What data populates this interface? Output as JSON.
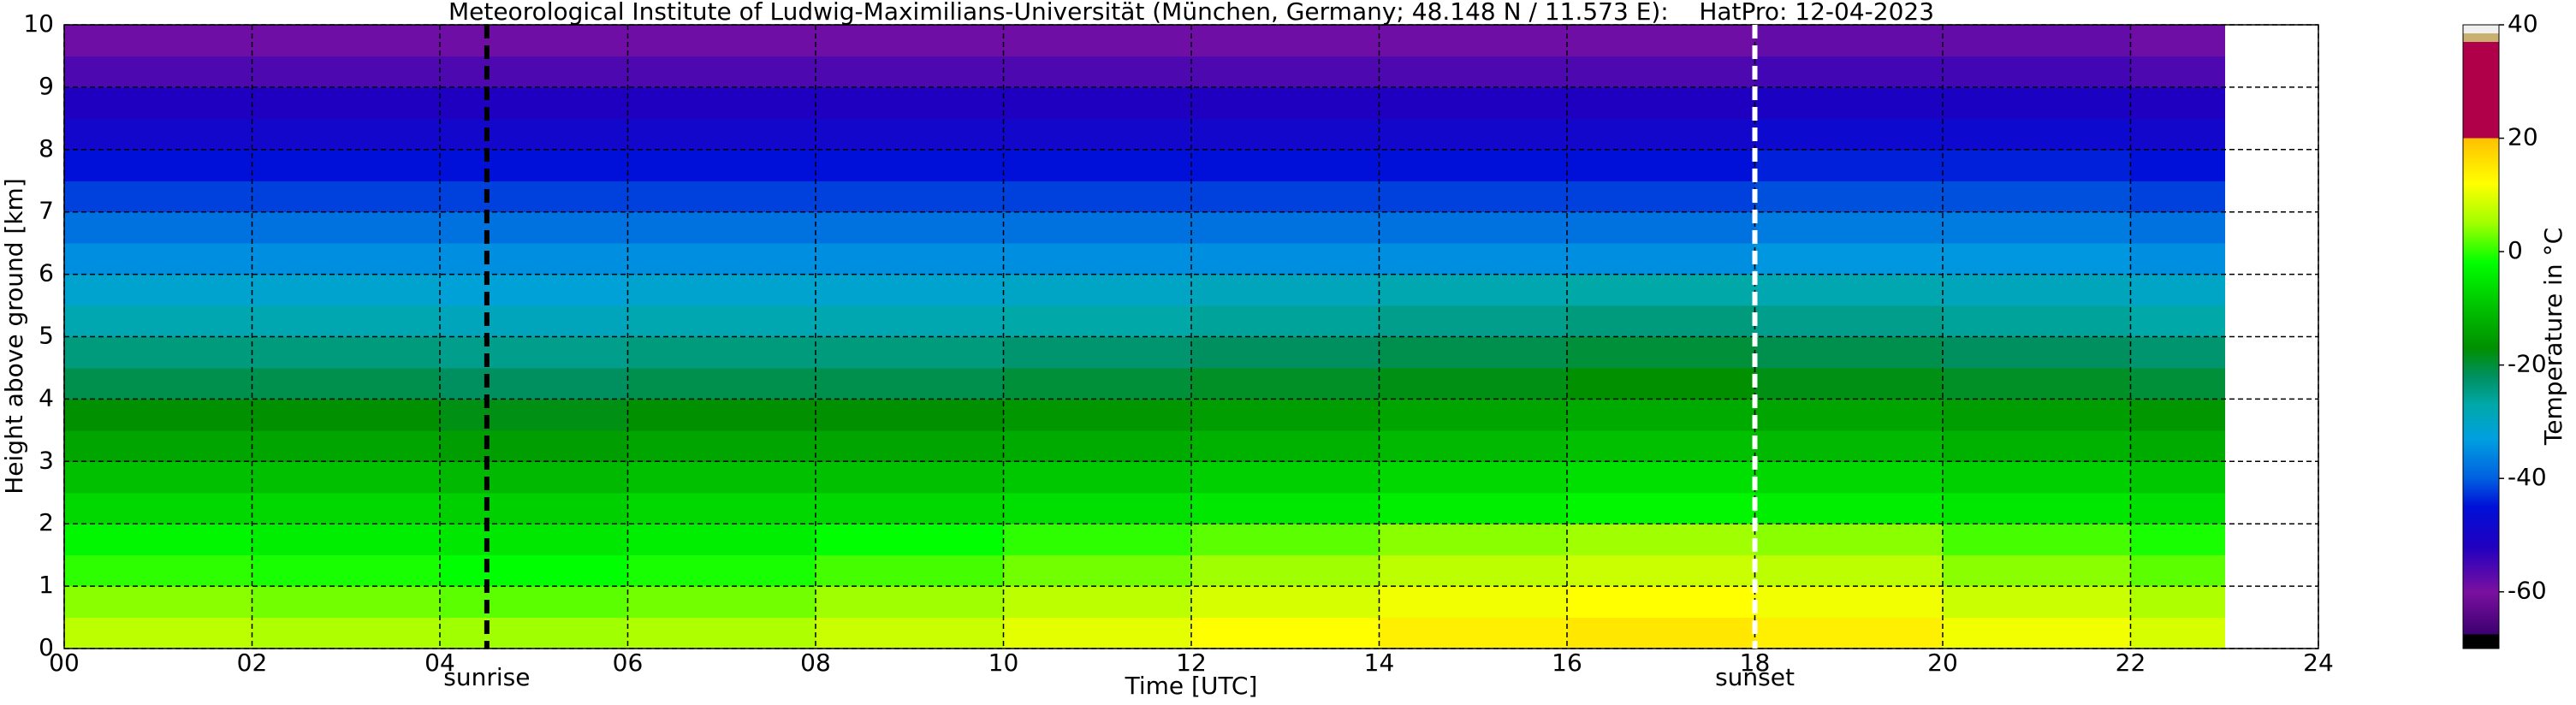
{
  "chart_data": {
    "type": "heatmap",
    "title": "Meteorological Institute of Ludwig-Maximilians-Universität (München, Germany; 48.148 N / 11.573 E):    HatPro: 12-04-2023",
    "xlabel": "Time [UTC]",
    "ylabel": "Height above ground [km]",
    "xlim": [
      0,
      24
    ],
    "ylim": [
      0,
      10
    ],
    "xticks": [
      {
        "value": 0,
        "label": "00"
      },
      {
        "value": 2,
        "label": "02"
      },
      {
        "value": 4,
        "label": "04"
      },
      {
        "value": 6,
        "label": "06"
      },
      {
        "value": 8,
        "label": "08"
      },
      10,
      12,
      14,
      16,
      18,
      20,
      22,
      24
    ],
    "yticks": [
      0,
      1,
      2,
      3,
      4,
      5,
      6,
      7,
      8,
      9,
      10
    ],
    "grid": true,
    "x_edges": [
      0,
      2,
      4,
      6,
      8,
      10,
      12,
      14,
      16,
      18,
      20,
      22,
      23
    ],
    "y_edges": [
      0,
      0.5,
      1,
      1.5,
      2,
      2.5,
      3,
      3.5,
      4,
      4.5,
      5,
      5.5,
      6,
      6.5,
      7,
      7.5,
      8,
      8.5,
      9,
      9.5,
      10
    ],
    "values": [
      [
        7,
        6,
        5,
        6,
        8,
        10,
        12,
        14,
        15,
        14,
        11,
        9
      ],
      [
        4,
        3,
        2,
        3,
        5,
        7,
        9,
        11,
        12,
        11,
        8,
        6
      ],
      [
        0,
        -1,
        -2,
        -1,
        1,
        3,
        5,
        7,
        8,
        7,
        4,
        2
      ],
      [
        -3,
        -4,
        -5,
        -4,
        -2,
        0,
        2,
        4,
        5,
        4,
        1,
        -1
      ],
      [
        -7,
        -7,
        -8,
        -7,
        -7,
        -6,
        -5,
        -4,
        -3,
        -4,
        -5,
        -6
      ],
      [
        -10,
        -10,
        -11,
        -10,
        -10,
        -9,
        -8,
        -7,
        -6,
        -7,
        -8,
        -9
      ],
      [
        -14,
        -14,
        -15,
        -14,
        -14,
        -13,
        -12,
        -11,
        -10,
        -11,
        -12,
        -13
      ],
      [
        -17,
        -17,
        -18,
        -17,
        -17,
        -16,
        -15,
        -14,
        -13,
        -14,
        -15,
        -16
      ],
      [
        -21,
        -21,
        -22,
        -21,
        -21,
        -20,
        -19,
        -18,
        -17,
        -18,
        -19,
        -20
      ],
      [
        -24,
        -24,
        -25,
        -24,
        -24,
        -23,
        -22,
        -21,
        -20,
        -21,
        -22,
        -23
      ],
      [
        -28,
        -28,
        -29,
        -28,
        -28,
        -27,
        -26,
        -25,
        -24,
        -25,
        -26,
        -27
      ],
      [
        -31,
        -31,
        -32,
        -31,
        -31,
        -30,
        -29,
        -28,
        -27,
        -28,
        -29,
        -30
      ],
      [
        -35,
        -35,
        -35,
        -35,
        -35,
        -35,
        -35,
        -35,
        -35,
        -34,
        -34,
        -35
      ],
      [
        -38,
        -38,
        -38,
        -38,
        -38,
        -38,
        -38,
        -38,
        -38,
        -37,
        -37,
        -38
      ],
      [
        -42,
        -42,
        -42,
        -42,
        -42,
        -42,
        -42,
        -42,
        -42,
        -41,
        -41,
        -42
      ],
      [
        -45,
        -45,
        -45,
        -45,
        -45,
        -45,
        -45,
        -45,
        -45,
        -44,
        -44,
        -45
      ],
      [
        -49,
        -49,
        -49,
        -49,
        -49,
        -49,
        -49,
        -49,
        -49,
        -48,
        -48,
        -49
      ],
      [
        -52,
        -52,
        -52,
        -52,
        -52,
        -52,
        -52,
        -52,
        -52,
        -51,
        -51,
        -52
      ],
      [
        -56,
        -56,
        -56,
        -56,
        -56,
        -56,
        -56,
        -56,
        -56,
        -55,
        -55,
        -56
      ],
      [
        -59,
        -59,
        -59,
        -59,
        -59,
        -59,
        -59,
        -59,
        -59,
        -58,
        -58,
        -59
      ]
    ],
    "colorbar": {
      "label": "Temperature in °C",
      "lim": [
        -70,
        40
      ],
      "ticks": [
        -60,
        -40,
        -20,
        0,
        20,
        40
      ],
      "stops": [
        -70,
        -67.5,
        -67.5,
        -60,
        -52,
        -45,
        -40,
        -33,
        -27,
        -22,
        -17,
        -10,
        -2,
        5,
        12,
        20,
        20,
        37,
        37,
        38.5,
        38.5,
        40
      ],
      "colors": [
        "#000000",
        "#000000",
        "#3c0070",
        "#7a10a0",
        "#2000c0",
        "#0010d8",
        "#0060e0",
        "#00a0e0",
        "#00a8a8",
        "#009060",
        "#009000",
        "#00c000",
        "#00ff00",
        "#a0ff00",
        "#ffff00",
        "#ffc000",
        "#b0004a",
        "#b0004a",
        "#c8b070",
        "#c8b070",
        "#f0f0f0",
        "#f0f0f0"
      ]
    },
    "annotations": [
      {
        "text": "sunrise",
        "x": 4.5,
        "color": "#000000"
      },
      {
        "text": "sunset",
        "x": 18.0,
        "color": "#ffffff"
      }
    ]
  }
}
